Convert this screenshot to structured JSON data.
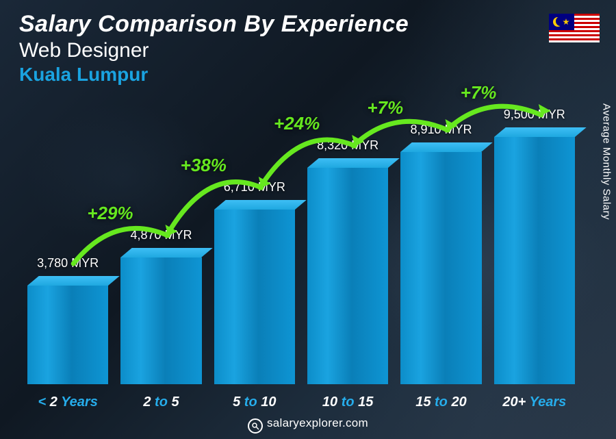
{
  "header": {
    "title": "Salary Comparison By Experience",
    "subtitle": "Web Designer",
    "location": "Kuala Lumpur",
    "location_color": "#1aa3e0"
  },
  "side_label": "Average Monthly Salary",
  "footer": {
    "site": "salaryexplorer.com"
  },
  "chart": {
    "type": "bar",
    "currency": "MYR",
    "bar_color_primary": "#1aa3e0",
    "accent_color": "#26adeb",
    "growth_color": "#66e81f",
    "background": "#10202e",
    "max_value": 9500,
    "bars": [
      {
        "category_prefix": "< ",
        "category_num": "2",
        "category_suffix": " Years",
        "value": 3780,
        "label": "3,780 MYR"
      },
      {
        "category_prefix": "",
        "category_num": "2",
        "category_mid": " to ",
        "category_num2": "5",
        "category_suffix": "",
        "value": 4870,
        "label": "4,870 MYR",
        "growth": "+29%"
      },
      {
        "category_prefix": "",
        "category_num": "5",
        "category_mid": " to ",
        "category_num2": "10",
        "category_suffix": "",
        "value": 6710,
        "label": "6,710 MYR",
        "growth": "+38%"
      },
      {
        "category_prefix": "",
        "category_num": "10",
        "category_mid": " to ",
        "category_num2": "15",
        "category_suffix": "",
        "value": 8320,
        "label": "8,320 MYR",
        "growth": "+24%"
      },
      {
        "category_prefix": "",
        "category_num": "15",
        "category_mid": " to ",
        "category_num2": "20",
        "category_suffix": "",
        "value": 8910,
        "label": "8,910 MYR",
        "growth": "+7%"
      },
      {
        "category_prefix": "",
        "category_num": "20+",
        "category_suffix": " Years",
        "value": 9500,
        "label": "9,500 MYR",
        "growth": "+7%"
      }
    ]
  }
}
